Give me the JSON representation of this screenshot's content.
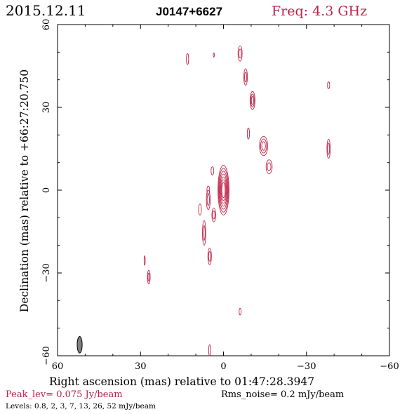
{
  "header": {
    "date": "2015.12.11",
    "source": "J0147+6627",
    "freq": "Freq: 4.3 GHz"
  },
  "footer": {
    "peak": "Peak_lev=  0.075 Jy/beam",
    "rms": "Rms_noise=   0.2 mJy/beam",
    "levels": "Levels: 0.8,    2,    3,    7,    13,   26,   52 mJy/beam"
  },
  "colors": {
    "contour": "#c0284a",
    "accent": "#b5234a",
    "axis": "#000000",
    "beam": "#808080"
  },
  "chart_data": {
    "type": "contour",
    "xlabel": "Right ascension (mas) relative to 01:47:28.3947",
    "ylabel": "Declination (mas) relative to +66:27:20.750",
    "xlim": [
      60,
      -60
    ],
    "ylim": [
      -60,
      60
    ],
    "xticks": [
      60,
      30,
      0,
      -30,
      -60
    ],
    "yticks": [
      -60,
      -30,
      0,
      30,
      60
    ],
    "xtick_labels": [
      "60",
      "30",
      "0",
      "−30",
      "−60"
    ],
    "ytick_labels": [
      "−60",
      "−30",
      "0",
      "30",
      "60"
    ],
    "beam": {
      "ra": 52,
      "dec": -56,
      "major": 6,
      "minor": 1.8,
      "pa": 0
    },
    "components": [
      {
        "ra": 0,
        "dec": 0,
        "w": 4.0,
        "h": 18.0,
        "n": 7
      },
      {
        "ra": 4,
        "dec": 7,
        "w": 1.0,
        "h": 3.0,
        "n": 1
      },
      {
        "ra": 5.5,
        "dec": 0,
        "w": 1.0,
        "h": 3.0,
        "n": 1
      },
      {
        "ra": 5.5,
        "dec": -3.5,
        "w": 1.4,
        "h": 7.0,
        "n": 2
      },
      {
        "ra": 3.5,
        "dec": -9,
        "w": 1.4,
        "h": 5.0,
        "n": 2
      },
      {
        "ra": 8.5,
        "dec": -7,
        "w": 1.0,
        "h": 4.0,
        "n": 1
      },
      {
        "ra": 7,
        "dec": -15.5,
        "w": 1.2,
        "h": 9.0,
        "n": 2
      },
      {
        "ra": 5,
        "dec": -24,
        "w": 1.3,
        "h": 6.0,
        "n": 2
      },
      {
        "ra": -14.5,
        "dec": 16,
        "w": 3.0,
        "h": 7.0,
        "n": 3
      },
      {
        "ra": -16.5,
        "dec": 8.5,
        "w": 2.2,
        "h": 5.0,
        "n": 2
      },
      {
        "ra": -38,
        "dec": 15,
        "w": 1.2,
        "h": 7.0,
        "n": 2
      },
      {
        "ra": -38,
        "dec": 38,
        "w": 0.8,
        "h": 2.5,
        "n": 1
      },
      {
        "ra": -6,
        "dec": 49.5,
        "w": 1.5,
        "h": 5.5,
        "n": 2
      },
      {
        "ra": -8,
        "dec": 41,
        "w": 1.3,
        "h": 6.0,
        "n": 2
      },
      {
        "ra": -10.5,
        "dec": 32.5,
        "w": 1.8,
        "h": 6.5,
        "n": 3
      },
      {
        "ra": -9,
        "dec": 20.5,
        "w": 0.8,
        "h": 4.0,
        "n": 1
      },
      {
        "ra": 13,
        "dec": 47.5,
        "w": 0.8,
        "h": 4.0,
        "n": 1
      },
      {
        "ra": 3.5,
        "dec": 49,
        "w": 0.4,
        "h": 1.5,
        "n": 1
      },
      {
        "ra": 27,
        "dec": -31.5,
        "w": 1.0,
        "h": 5.0,
        "n": 2
      },
      {
        "ra": 28.5,
        "dec": -25.5,
        "w": 0.4,
        "h": 3.5,
        "n": 1
      },
      {
        "ra": -6,
        "dec": -44,
        "w": 0.7,
        "h": 2.5,
        "n": 1
      },
      {
        "ra": 5,
        "dec": -58,
        "w": 0.7,
        "h": 4.0,
        "n": 1
      }
    ]
  }
}
